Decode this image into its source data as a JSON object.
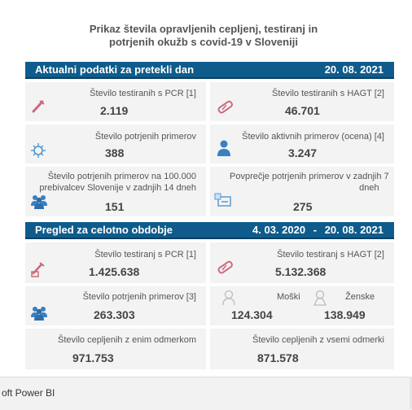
{
  "title_line1": "Prikaz števila opravljenih cepljenj, testiranj in",
  "title_line2": "potrjenih okužb s covid-19 v Sloveniji",
  "section1": {
    "label": "Aktualni podatki za pretekli dan",
    "date": "20. 08. 2021",
    "cards": [
      {
        "label": "Število testiranih s PCR [1]",
        "value": "2.119",
        "icon": "test-tube-icon"
      },
      {
        "label": "Število testiranih s HAGT [2]",
        "value": "46.701",
        "icon": "rapid-test-icon"
      },
      {
        "label": "Število potrjenih primerov",
        "value": "388",
        "icon": "virus-icon"
      },
      {
        "label": "Število aktivnih primerov (ocena) [4]",
        "value": "3.247",
        "icon": "person-icon"
      },
      {
        "label_line1": "Število potrjenih primerov na 100.000",
        "label_line2": "prebivalcev Slovenije v zadnjih 14 dneh",
        "value": "151",
        "icon": "group-icon"
      },
      {
        "label_line1": "Povprečje potrjenih primerov v zadnjih 7",
        "label_line2": "dneh",
        "value": "275",
        "icon": "average-icon"
      }
    ]
  },
  "section2": {
    "label": "Pregled za celotno obdobje",
    "date_from": "4. 03. 2020",
    "date_sep": "-",
    "date_to": "20. 08. 2021",
    "cards": [
      {
        "label": "Število testiranj s PCR [1]",
        "value": "1.425.638",
        "icon": "test-tube-icon"
      },
      {
        "label": "Število testiranj s HAGT [2]",
        "value": "5.132.368",
        "icon": "rapid-test-icon"
      },
      {
        "label": "Število potrjenih primerov [3]",
        "value": "263.303",
        "icon": "group-icon"
      },
      {
        "male_label": "Moški",
        "male_value": "124.304",
        "female_label": "Ženske",
        "female_value": "138.949"
      },
      {
        "label": "Število cepljenih z enim odmerkom",
        "value": "971.753"
      },
      {
        "label": "Število cepljenih z vsemi odmerki",
        "value": "871.578"
      }
    ]
  },
  "footer": {
    "text": "oft Power BI"
  },
  "colors": {
    "header": "#0f5c8c",
    "icon_red": "#c96a7c",
    "icon_blue": "#5a9bd5"
  }
}
